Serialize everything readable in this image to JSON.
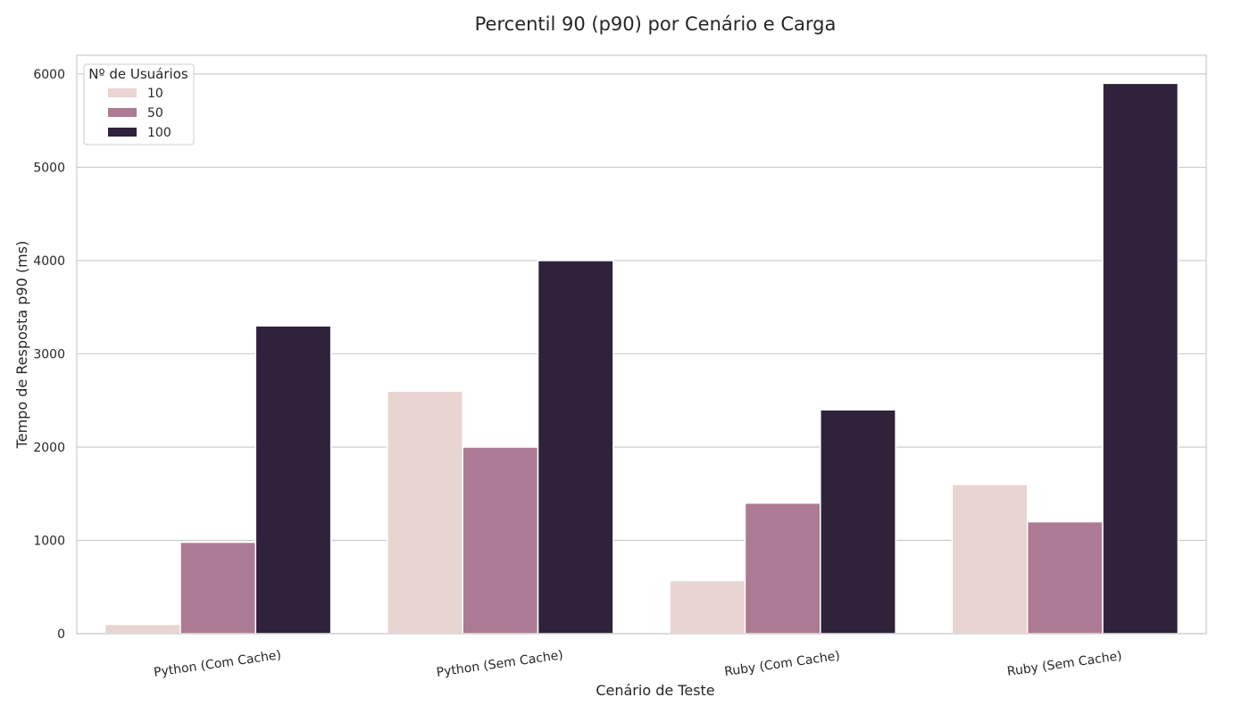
{
  "chart_data": {
    "type": "bar",
    "title": "Percentil 90 (p90) por Cenário e Carga",
    "xlabel": "Cenário de Teste",
    "ylabel": "Tempo de Resposta p90 (ms)",
    "categories": [
      "Python (Com Cache)",
      "Python (Sem Cache)",
      "Ruby (Com Cache)",
      "Ruby (Sem Cache)"
    ],
    "ylim": [
      0,
      6200
    ],
    "yticks": [
      0,
      1000,
      2000,
      3000,
      4000,
      5000,
      6000
    ],
    "grid": true,
    "legend": {
      "title": "Nº de Usuários",
      "placement": "top-left"
    },
    "series": [
      {
        "name": "10",
        "color": "#e8d4d0",
        "values": [
          100,
          2600,
          570,
          1600
        ]
      },
      {
        "name": "50",
        "color": "#ad7a93",
        "values": [
          980,
          2000,
          1400,
          1200
        ]
      },
      {
        "name": "100",
        "color": "#2f223b",
        "values": [
          3300,
          4000,
          2400,
          5900
        ]
      }
    ]
  }
}
